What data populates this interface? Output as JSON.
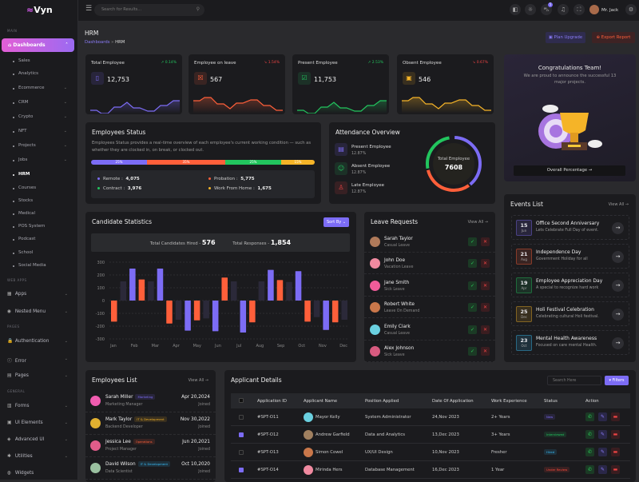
{
  "brand": {
    "name": "Vyn",
    "accent": "#7c6cf5"
  },
  "sidebar": {
    "sections": [
      "MAIN",
      "WEB APPS",
      "PAGES",
      "GENERAL"
    ],
    "dashboards": "Dashboards",
    "sub": [
      {
        "label": "Sales"
      },
      {
        "label": "Analytics"
      },
      {
        "label": "Ecommerce",
        "chev": true
      },
      {
        "label": "CRM",
        "chev": true
      },
      {
        "label": "Crypto",
        "chev": true
      },
      {
        "label": "NFT",
        "chev": true
      },
      {
        "label": "Projects",
        "chev": true
      },
      {
        "label": "Jobs",
        "chev": true
      },
      {
        "label": "HRM",
        "active": true
      },
      {
        "label": "Courses"
      },
      {
        "label": "Stocks"
      },
      {
        "label": "Medical"
      },
      {
        "label": "POS System"
      },
      {
        "label": "Podcast"
      },
      {
        "label": "School"
      },
      {
        "label": "Social Media"
      }
    ],
    "main": [
      {
        "label": "Apps",
        "icon": "grid-icon",
        "glyph": "▦"
      },
      {
        "label": "Nested Menu",
        "icon": "layers-icon",
        "glyph": "◉"
      },
      {
        "label": "Authentication",
        "icon": "lock-icon",
        "glyph": "🔒"
      },
      {
        "label": "Error",
        "icon": "info-icon",
        "glyph": "ⓘ"
      },
      {
        "label": "Pages",
        "icon": "file-icon",
        "glyph": "▤"
      },
      {
        "label": "Forms",
        "icon": "forms-icon",
        "glyph": "▥"
      },
      {
        "label": "UI Elements",
        "icon": "box-icon",
        "glyph": "▣"
      },
      {
        "label": "Advanced UI",
        "icon": "stack-icon",
        "glyph": "◈"
      },
      {
        "label": "Utilities",
        "icon": "utilities-icon",
        "glyph": "✱"
      },
      {
        "label": "Widgets",
        "icon": "widgets-icon",
        "glyph": "◍"
      }
    ]
  },
  "topbar": {
    "search_placeholder": "Search for Results...",
    "user": "Mr. Jack",
    "cart_badge": "5"
  },
  "header": {
    "title": "HRM",
    "breadcrumb": [
      "Dashboards",
      "HRM"
    ],
    "plan_upgrade": "Plan Upgrade",
    "export_report": "Export Report"
  },
  "kpis": [
    {
      "title": "Total Employee",
      "value": "12,753",
      "change": "0.14%",
      "trend": "up",
      "color": "#7c6cf5"
    },
    {
      "title": "Employee on leave",
      "value": "567",
      "change": "1.54%",
      "trend": "down",
      "color": "#ff5f3a"
    },
    {
      "title": "Present Employee",
      "value": "11,753",
      "change": "2.53%",
      "trend": "up",
      "color": "#22c55e"
    },
    {
      "title": "Obsent Employee",
      "value": "546",
      "change": "0.67%",
      "trend": "down",
      "color": "#f5b428"
    }
  ],
  "congrats": {
    "title": "Congratulations Team!",
    "text": "We are proud to announce the successful 13 major projects.",
    "button": "Overall Percentage →"
  },
  "status": {
    "title": "Employees Status",
    "desc": "Employees Status provides a real-time overview of each employee's current working condition — such as whether they are clocked in, on break, or clocked out.",
    "segments": [
      {
        "label": "25%",
        "pct": 25,
        "color": "#7c6cf5"
      },
      {
        "label": "35%",
        "pct": 35,
        "color": "#ff5f3a"
      },
      {
        "label": "25%",
        "pct": 25,
        "color": "#22c55e"
      },
      {
        "label": "15%",
        "pct": 15,
        "color": "#f5b428"
      }
    ],
    "items": [
      {
        "label": "Remote :",
        "value": "4,075",
        "color": "#7c6cf5"
      },
      {
        "label": "Probation :",
        "value": "5,775",
        "color": "#ff5f3a"
      },
      {
        "label": "Contract :",
        "value": "3,976",
        "color": "#22c55e"
      },
      {
        "label": "Work From Home :",
        "value": "1,675",
        "color": "#f5b428"
      }
    ]
  },
  "attendance": {
    "title": "Attendance Overview",
    "total_label": "Total Employee",
    "total": "7608",
    "items": [
      {
        "label": "Present Employee",
        "pct": "12.87%"
      },
      {
        "label": "Absent Employee",
        "pct": "12.87%"
      },
      {
        "label": "Late Employee",
        "pct": "12.87%"
      }
    ]
  },
  "candidates": {
    "title": "Candidate Statistics",
    "sort": "Sort By",
    "hired_label": "Total Candidates Hired -",
    "hired": "576",
    "responses_label": "Total Responses -",
    "responses": "1,854"
  },
  "chart_data": {
    "type": "bar",
    "categories": [
      "Jan",
      "Feb",
      "Mar",
      "Apr",
      "May",
      "Jun",
      "Jul",
      "Aug",
      "Sep",
      "Oct",
      "Nov",
      "Dec"
    ],
    "ylim": [
      -300,
      300
    ],
    "yticks": [
      300,
      200,
      100,
      0,
      -100,
      -200,
      -300
    ],
    "grid": true,
    "series_colors": {
      "orange": "#ff5f3a",
      "dark": "#2b2939",
      "purple": "#7c6cf5"
    },
    "bars": [
      {
        "s": "orange",
        "v": -165
      },
      {
        "s": "dark",
        "v": 150
      },
      {
        "s": "purple",
        "v": 250
      },
      {
        "s": "orange",
        "v": 165
      },
      {
        "s": "dark",
        "v": 150
      },
      {
        "s": "purple",
        "v": 250
      },
      {
        "s": "orange",
        "v": -180
      },
      {
        "s": "dark",
        "v": -150
      },
      {
        "s": "purple",
        "v": -235
      },
      {
        "s": "orange",
        "v": -155
      },
      {
        "s": "dark",
        "v": -140
      },
      {
        "s": "purple",
        "v": -240
      },
      {
        "s": "orange",
        "v": 180
      },
      {
        "s": "dark",
        "v": 150
      },
      {
        "s": "purple",
        "v": -250
      },
      {
        "s": "orange",
        "v": -170
      },
      {
        "s": "dark",
        "v": 150
      },
      {
        "s": "purple",
        "v": 240
      },
      {
        "s": "orange",
        "v": 160
      },
      {
        "s": "dark",
        "v": 145
      },
      {
        "s": "purple",
        "v": 230
      },
      {
        "s": "orange",
        "v": -165
      },
      {
        "s": "dark",
        "v": -130
      },
      {
        "s": "purple",
        "v": -230
      },
      {
        "s": "orange",
        "v": -170
      },
      {
        "s": "dark",
        "v": -150
      }
    ]
  },
  "leave": {
    "title": "Leave Requests",
    "view_all": "View All →",
    "items": [
      {
        "name": "Sarah Taylor",
        "type": "Casual Leave",
        "c": "#b07a5a"
      },
      {
        "name": "John Doe",
        "type": "Vacation Leave",
        "c": "#f08aa0"
      },
      {
        "name": "Jane Smith",
        "type": "Sick Leave",
        "c": "#f05c9a"
      },
      {
        "name": "Robert White",
        "type": "Leave On Demand",
        "c": "#c9774a"
      },
      {
        "name": "Emily Clark",
        "type": "Casual Leave",
        "c": "#6ad0e0"
      },
      {
        "name": "Alex Johnson",
        "type": "Sick Leave",
        "c": "#d85b80"
      }
    ]
  },
  "events": {
    "title": "Events List",
    "view_all": "View All →",
    "items": [
      {
        "day": "15",
        "mon": "Jun",
        "title": "Office Second Anniversary",
        "sub": "Lets Celebrate Full Day of event.",
        "c": "#7c6cf5"
      },
      {
        "day": "21",
        "mon": "Aug",
        "title": "Independence Day",
        "sub": "Government Holiday for all",
        "c": "#ff5f3a"
      },
      {
        "day": "19",
        "mon": "Apr",
        "title": "Employee Appreciation Day",
        "sub": "A special to recognize hard work",
        "c": "#22c55e"
      },
      {
        "day": "25",
        "mon": "Dec",
        "title": "Holi Festival Celebration",
        "sub": "Celebrating cultural Holi festival.",
        "c": "#f5b428"
      },
      {
        "day": "23",
        "mon": "Oct",
        "title": "Mental Health Awareness",
        "sub": "Focused on care mental Health.",
        "c": "#38bdf8"
      }
    ]
  },
  "employees": {
    "title": "Employees List",
    "view_all": "View All →",
    "joined": "Joined",
    "items": [
      {
        "name": "Sarah Miller",
        "dept": "Marketing",
        "role": "Marketing Manager",
        "date": "Apr 20,2024",
        "tc": "#7c6cf5",
        "c": "#f05cb0"
      },
      {
        "name": "Mark Taylor",
        "dept": "IT & Development",
        "role": "Backend Developer",
        "date": "Nov 30,2022",
        "tc": "#f5b428",
        "c": "#e0b030"
      },
      {
        "name": "Jessica Lee",
        "dept": "Operations",
        "role": "Project Manager",
        "date": "Jun 20,2021",
        "tc": "#ff5f3a",
        "c": "#e05c8a"
      },
      {
        "name": "David Wilson",
        "dept": "IT & Development",
        "role": "Data Scientist",
        "date": "Oct 10,2020",
        "tc": "#38bdf8",
        "c": "#9ac0a0"
      }
    ]
  },
  "applicants": {
    "title": "Applicant Details",
    "search_placeholder": "Search Here",
    "filters": "Filters",
    "columns": [
      "Application ID",
      "Applicant Name",
      "Position Applied",
      "Date Of Application",
      "Work Experience",
      "Status",
      "Action"
    ],
    "rows": [
      {
        "id": "#SPT-O11",
        "name": "Mayor Kelly",
        "position": "System Administrator",
        "date": "24,Nov 2023",
        "exp": "2+ Years",
        "status": "New",
        "sc": "#7c6cf5",
        "checked": false,
        "c": "#6ad0e0"
      },
      {
        "id": "#SPT-O12",
        "name": "Andrew Garfield",
        "position": "Data and Analytics",
        "date": "13,Dec 2023",
        "exp": "3+ Years",
        "status": "Interviewed",
        "sc": "#22c55e",
        "checked": true,
        "c": "#a08060"
      },
      {
        "id": "#SPT-O13",
        "name": "Simon Cowel",
        "position": "UX/UI Design",
        "date": "10,Nov 2023",
        "exp": "Fresher",
        "status": "Hired",
        "sc": "#38bdf8",
        "checked": false,
        "c": "#c9774a"
      },
      {
        "id": "#SPT-O14",
        "name": "Mirinda Hers",
        "position": "Database Management",
        "date": "16,Dec 2023",
        "exp": "1 Year",
        "status": "Under Review",
        "sc": "#ff4a3a",
        "checked": true,
        "c": "#f08aa0"
      }
    ]
  }
}
